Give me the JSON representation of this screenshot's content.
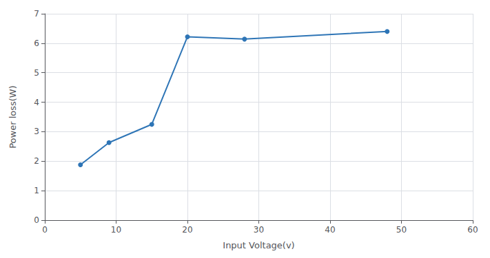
{
  "chart_data": {
    "type": "line",
    "x": [
      5,
      9,
      15,
      20,
      28,
      48
    ],
    "values": [
      1.88,
      2.63,
      3.25,
      6.22,
      6.14,
      6.4
    ],
    "color": "#2E75B6",
    "marker": "circle",
    "xlabel": "Input Voltage(v)",
    "ylabel": "Power loss(W)",
    "xlim": [
      0,
      60
    ],
    "ylim": [
      0,
      7
    ],
    "xticks": [
      0,
      10,
      20,
      30,
      40,
      50,
      60
    ],
    "yticks": [
      0,
      1,
      2,
      3,
      4,
      5,
      6,
      7
    ],
    "grid": true
  }
}
